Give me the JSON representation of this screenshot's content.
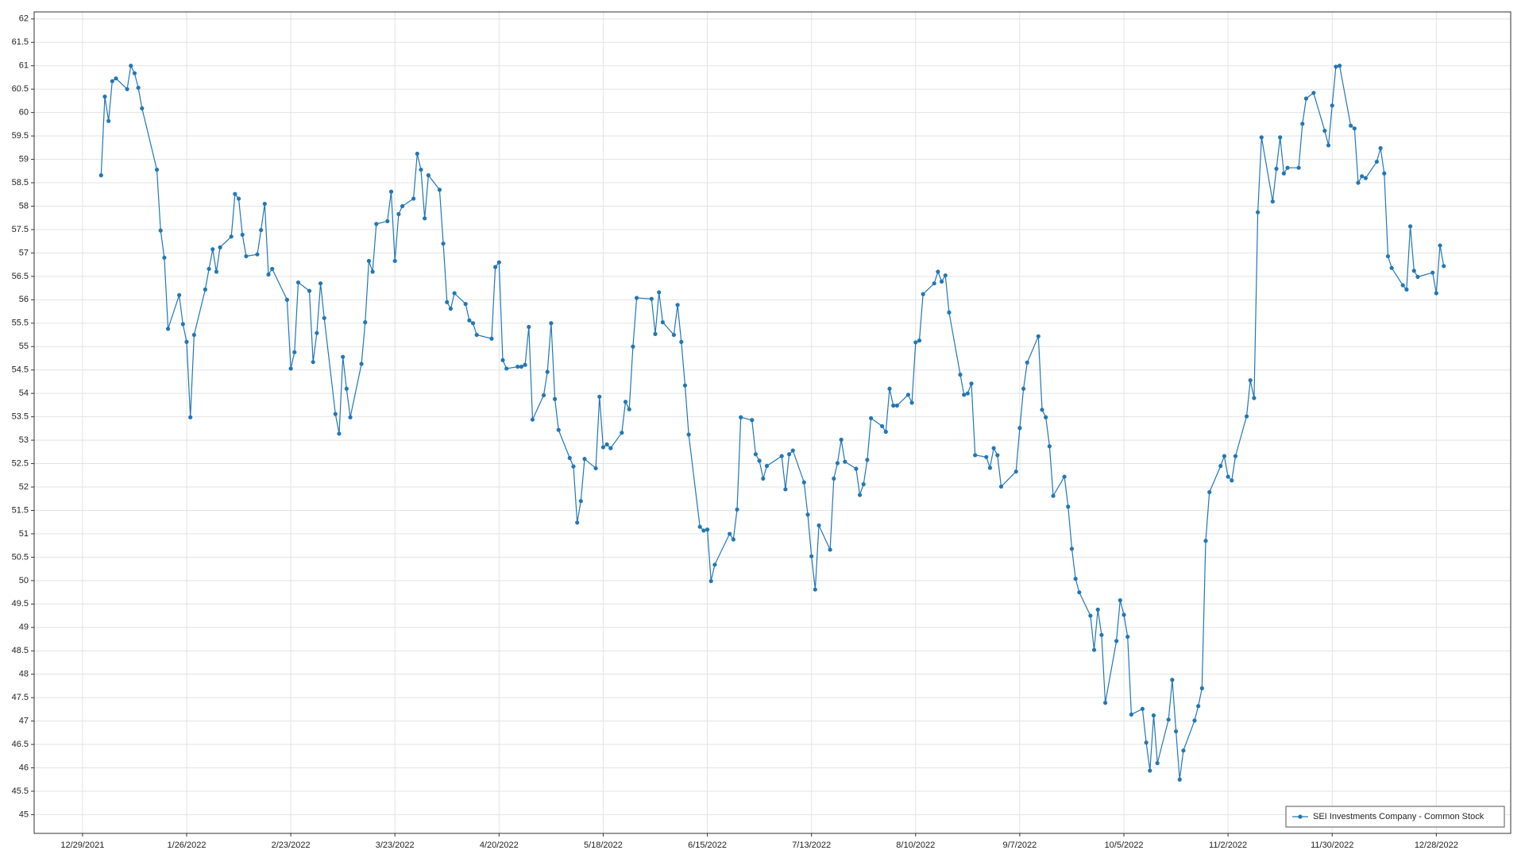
{
  "chart_data": {
    "type": "line",
    "x": [
      "1/3/2022",
      "1/4/2022",
      "1/5/2022",
      "1/6/2022",
      "1/7/2022",
      "1/10/2022",
      "1/11/2022",
      "1/12/2022",
      "1/13/2022",
      "1/14/2022",
      "1/18/2022",
      "1/19/2022",
      "1/20/2022",
      "1/21/2022",
      "1/24/2022",
      "1/25/2022",
      "1/26/2022",
      "1/27/2022",
      "1/28/2022",
      "1/31/2022",
      "2/1/2022",
      "2/2/2022",
      "2/3/2022",
      "2/4/2022",
      "2/7/2022",
      "2/8/2022",
      "2/9/2022",
      "2/10/2022",
      "2/11/2022",
      "2/14/2022",
      "2/15/2022",
      "2/16/2022",
      "2/17/2022",
      "2/18/2022",
      "2/22/2022",
      "2/23/2022",
      "2/24/2022",
      "2/25/2022",
      "2/28/2022",
      "3/1/2022",
      "3/2/2022",
      "3/3/2022",
      "3/4/2022",
      "3/7/2022",
      "3/8/2022",
      "3/9/2022",
      "3/10/2022",
      "3/11/2022",
      "3/14/2022",
      "3/15/2022",
      "3/16/2022",
      "3/17/2022",
      "3/18/2022",
      "3/21/2022",
      "3/22/2022",
      "3/23/2022",
      "3/24/2022",
      "3/25/2022",
      "3/28/2022",
      "3/29/2022",
      "3/30/2022",
      "3/31/2022",
      "4/1/2022",
      "4/4/2022",
      "4/5/2022",
      "4/6/2022",
      "4/7/2022",
      "4/8/2022",
      "4/11/2022",
      "4/12/2022",
      "4/13/2022",
      "4/14/2022",
      "4/18/2022",
      "4/19/2022",
      "4/20/2022",
      "4/21/2022",
      "4/22/2022",
      "4/25/2022",
      "4/26/2022",
      "4/27/2022",
      "4/28/2022",
      "4/29/2022",
      "5/2/2022",
      "5/3/2022",
      "5/4/2022",
      "5/5/2022",
      "5/6/2022",
      "5/9/2022",
      "5/10/2022",
      "5/11/2022",
      "5/12/2022",
      "5/13/2022",
      "5/16/2022",
      "5/17/2022",
      "5/18/2022",
      "5/19/2022",
      "5/20/2022",
      "5/23/2022",
      "5/24/2022",
      "5/25/2022",
      "5/26/2022",
      "5/27/2022",
      "5/31/2022",
      "6/1/2022",
      "6/2/2022",
      "6/3/2022",
      "6/6/2022",
      "6/7/2022",
      "6/8/2022",
      "6/9/2022",
      "6/10/2022",
      "6/13/2022",
      "6/14/2022",
      "6/15/2022",
      "6/16/2022",
      "6/17/2022",
      "6/21/2022",
      "6/22/2022",
      "6/23/2022",
      "6/24/2022",
      "6/27/2022",
      "6/28/2022",
      "6/29/2022",
      "6/30/2022",
      "7/1/2022",
      "7/5/2022",
      "7/6/2022",
      "7/7/2022",
      "7/8/2022",
      "7/11/2022",
      "7/12/2022",
      "7/13/2022",
      "7/14/2022",
      "7/15/2022",
      "7/18/2022",
      "7/19/2022",
      "7/20/2022",
      "7/21/2022",
      "7/22/2022",
      "7/25/2022",
      "7/26/2022",
      "7/27/2022",
      "7/28/2022",
      "7/29/2022",
      "8/1/2022",
      "8/2/2022",
      "8/3/2022",
      "8/4/2022",
      "8/5/2022",
      "8/8/2022",
      "8/9/2022",
      "8/10/2022",
      "8/11/2022",
      "8/12/2022",
      "8/15/2022",
      "8/16/2022",
      "8/17/2022",
      "8/18/2022",
      "8/19/2022",
      "8/22/2022",
      "8/23/2022",
      "8/24/2022",
      "8/25/2022",
      "8/26/2022",
      "8/29/2022",
      "8/30/2022",
      "8/31/2022",
      "9/1/2022",
      "9/2/2022",
      "9/6/2022",
      "9/7/2022",
      "9/8/2022",
      "9/9/2022",
      "9/12/2022",
      "9/13/2022",
      "9/14/2022",
      "9/15/2022",
      "9/16/2022",
      "9/19/2022",
      "9/20/2022",
      "9/21/2022",
      "9/22/2022",
      "9/23/2022",
      "9/26/2022",
      "9/27/2022",
      "9/28/2022",
      "9/29/2022",
      "9/30/2022",
      "10/3/2022",
      "10/4/2022",
      "10/5/2022",
      "10/6/2022",
      "10/7/2022",
      "10/10/2022",
      "10/11/2022",
      "10/12/2022",
      "10/13/2022",
      "10/14/2022",
      "10/17/2022",
      "10/18/2022",
      "10/19/2022",
      "10/20/2022",
      "10/21/2022",
      "10/24/2022",
      "10/25/2022",
      "10/26/2022",
      "10/27/2022",
      "10/28/2022",
      "10/31/2022",
      "11/1/2022",
      "11/2/2022",
      "11/3/2022",
      "11/4/2022",
      "11/7/2022",
      "11/8/2022",
      "11/9/2022",
      "11/10/2022",
      "11/11/2022",
      "11/14/2022",
      "11/15/2022",
      "11/16/2022",
      "11/17/2022",
      "11/18/2022",
      "11/21/2022",
      "11/22/2022",
      "11/23/2022",
      "11/25/2022",
      "11/28/2022",
      "11/29/2022",
      "11/30/2022",
      "12/1/2022",
      "12/2/2022",
      "12/5/2022",
      "12/6/2022",
      "12/7/2022",
      "12/8/2022",
      "12/9/2022",
      "12/12/2022",
      "12/13/2022",
      "12/14/2022",
      "12/15/2022",
      "12/16/2022",
      "12/19/2022",
      "12/20/2022",
      "12/21/2022",
      "12/22/2022",
      "12/23/2022",
      "12/27/2022",
      "12/28/2022",
      "12/29/2022",
      "12/30/2022"
    ],
    "series": [
      {
        "name": "SEI Investments Company - Common Stock",
        "color": "#2277b5",
        "values": [
          58.66,
          60.34,
          59.82,
          60.67,
          60.73,
          60.5,
          61.0,
          60.84,
          60.53,
          60.09,
          58.78,
          57.48,
          56.9,
          55.38,
          56.1,
          55.48,
          55.1,
          53.49,
          55.25,
          56.22,
          56.66,
          57.08,
          56.6,
          57.12,
          57.35,
          58.26,
          58.16,
          57.39,
          56.93,
          56.97,
          57.49,
          58.05,
          56.54,
          56.66,
          56.0,
          54.53,
          54.88,
          56.37,
          56.19,
          54.67,
          55.29,
          56.35,
          55.61,
          53.56,
          53.14,
          54.78,
          54.1,
          53.49,
          54.63,
          55.52,
          56.83,
          56.6,
          57.62,
          57.68,
          58.31,
          56.83,
          57.83,
          58.0,
          58.16,
          59.12,
          58.78,
          57.74,
          58.66,
          58.35,
          57.2,
          55.95,
          55.81,
          56.14,
          55.91,
          55.56,
          55.5,
          55.25,
          55.17,
          56.7,
          56.8,
          54.71,
          54.53,
          54.57,
          54.57,
          54.61,
          55.42,
          53.44,
          53.96,
          54.46,
          55.5,
          53.88,
          53.22,
          52.62,
          52.44,
          51.24,
          51.7,
          52.6,
          52.4,
          53.93,
          52.85,
          52.91,
          52.83,
          53.16,
          53.82,
          53.66,
          55.0,
          56.04,
          56.02,
          55.27,
          56.16,
          55.52,
          55.25,
          55.89,
          55.1,
          54.17,
          53.12,
          51.15,
          51.07,
          51.09,
          49.99,
          50.34,
          51.0,
          50.88,
          51.52,
          53.49,
          53.43,
          52.7,
          52.56,
          52.18,
          52.45,
          52.66,
          51.95,
          52.7,
          52.78,
          52.1,
          51.41,
          50.52,
          49.81,
          51.18,
          50.66,
          52.18,
          52.51,
          53.01,
          52.54,
          52.39,
          51.83,
          52.06,
          52.58,
          53.47,
          53.3,
          53.18,
          54.1,
          53.74,
          53.74,
          53.97,
          53.8,
          55.09,
          55.13,
          56.12,
          56.35,
          56.6,
          56.39,
          56.52,
          55.73,
          54.4,
          53.97,
          54.0,
          54.21,
          52.68,
          52.64,
          52.41,
          52.83,
          52.68,
          52.01,
          52.33,
          53.26,
          54.1,
          54.66,
          55.22,
          53.65,
          53.49,
          52.87,
          51.81,
          52.22,
          51.58,
          50.68,
          50.04,
          49.75,
          49.25,
          48.52,
          49.38,
          48.84,
          47.39,
          48.71,
          49.58,
          49.27,
          48.8,
          47.14,
          47.26,
          46.54,
          45.94,
          47.12,
          46.1,
          47.03,
          47.88,
          46.78,
          45.75,
          46.37,
          47.01,
          47.32,
          47.7,
          50.85,
          51.89,
          52.45,
          52.66,
          52.22,
          52.14,
          52.66,
          53.51,
          54.28,
          53.9,
          57.87,
          59.47,
          58.1,
          58.8,
          59.47,
          58.7,
          58.82,
          58.82,
          59.76,
          60.3,
          60.42,
          59.61,
          59.3,
          60.15,
          60.98,
          61.0,
          59.72,
          59.66,
          58.5,
          58.64,
          58.6,
          58.95,
          59.24,
          58.7,
          56.93,
          56.68,
          56.31,
          56.22,
          57.57,
          56.62,
          56.49,
          56.58,
          56.14,
          57.16,
          56.72
        ]
      }
    ],
    "xlim": [
      "12/16/2021",
      "1/17/2023"
    ],
    "xticks": [
      "12/29/2021",
      "1/26/2022",
      "2/23/2022",
      "3/23/2022",
      "4/20/2022",
      "5/18/2022",
      "6/15/2022",
      "7/13/2022",
      "8/10/2022",
      "9/7/2022",
      "10/5/2022",
      "11/2/2022",
      "11/30/2022",
      "12/28/2022"
    ],
    "ylim": [
      44.6,
      62.15
    ],
    "yticks": [
      45,
      45.5,
      46,
      46.5,
      47,
      47.5,
      48,
      48.5,
      49,
      49.5,
      50,
      50.5,
      51,
      51.5,
      52,
      52.5,
      53,
      53.5,
      54,
      54.5,
      55,
      55.5,
      56,
      56.5,
      57,
      57.5,
      58,
      58.5,
      59,
      59.5,
      60,
      60.5,
      61,
      61.5,
      62
    ],
    "grid": true,
    "legend": "bottom-right"
  }
}
